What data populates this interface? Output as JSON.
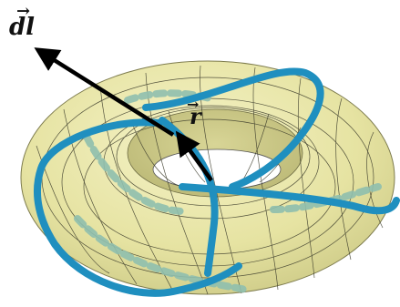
{
  "labels": {
    "dl": "dl",
    "r": "r"
  },
  "colors": {
    "torus_fill": "#e9e7a8",
    "torus_shade": "#cfcd86",
    "torus_hole": "#ffffff",
    "grid": "#3a3a2a",
    "curve": "#1f8fbf",
    "curve_hidden": "#8fbfae",
    "arrow": "#000000"
  }
}
